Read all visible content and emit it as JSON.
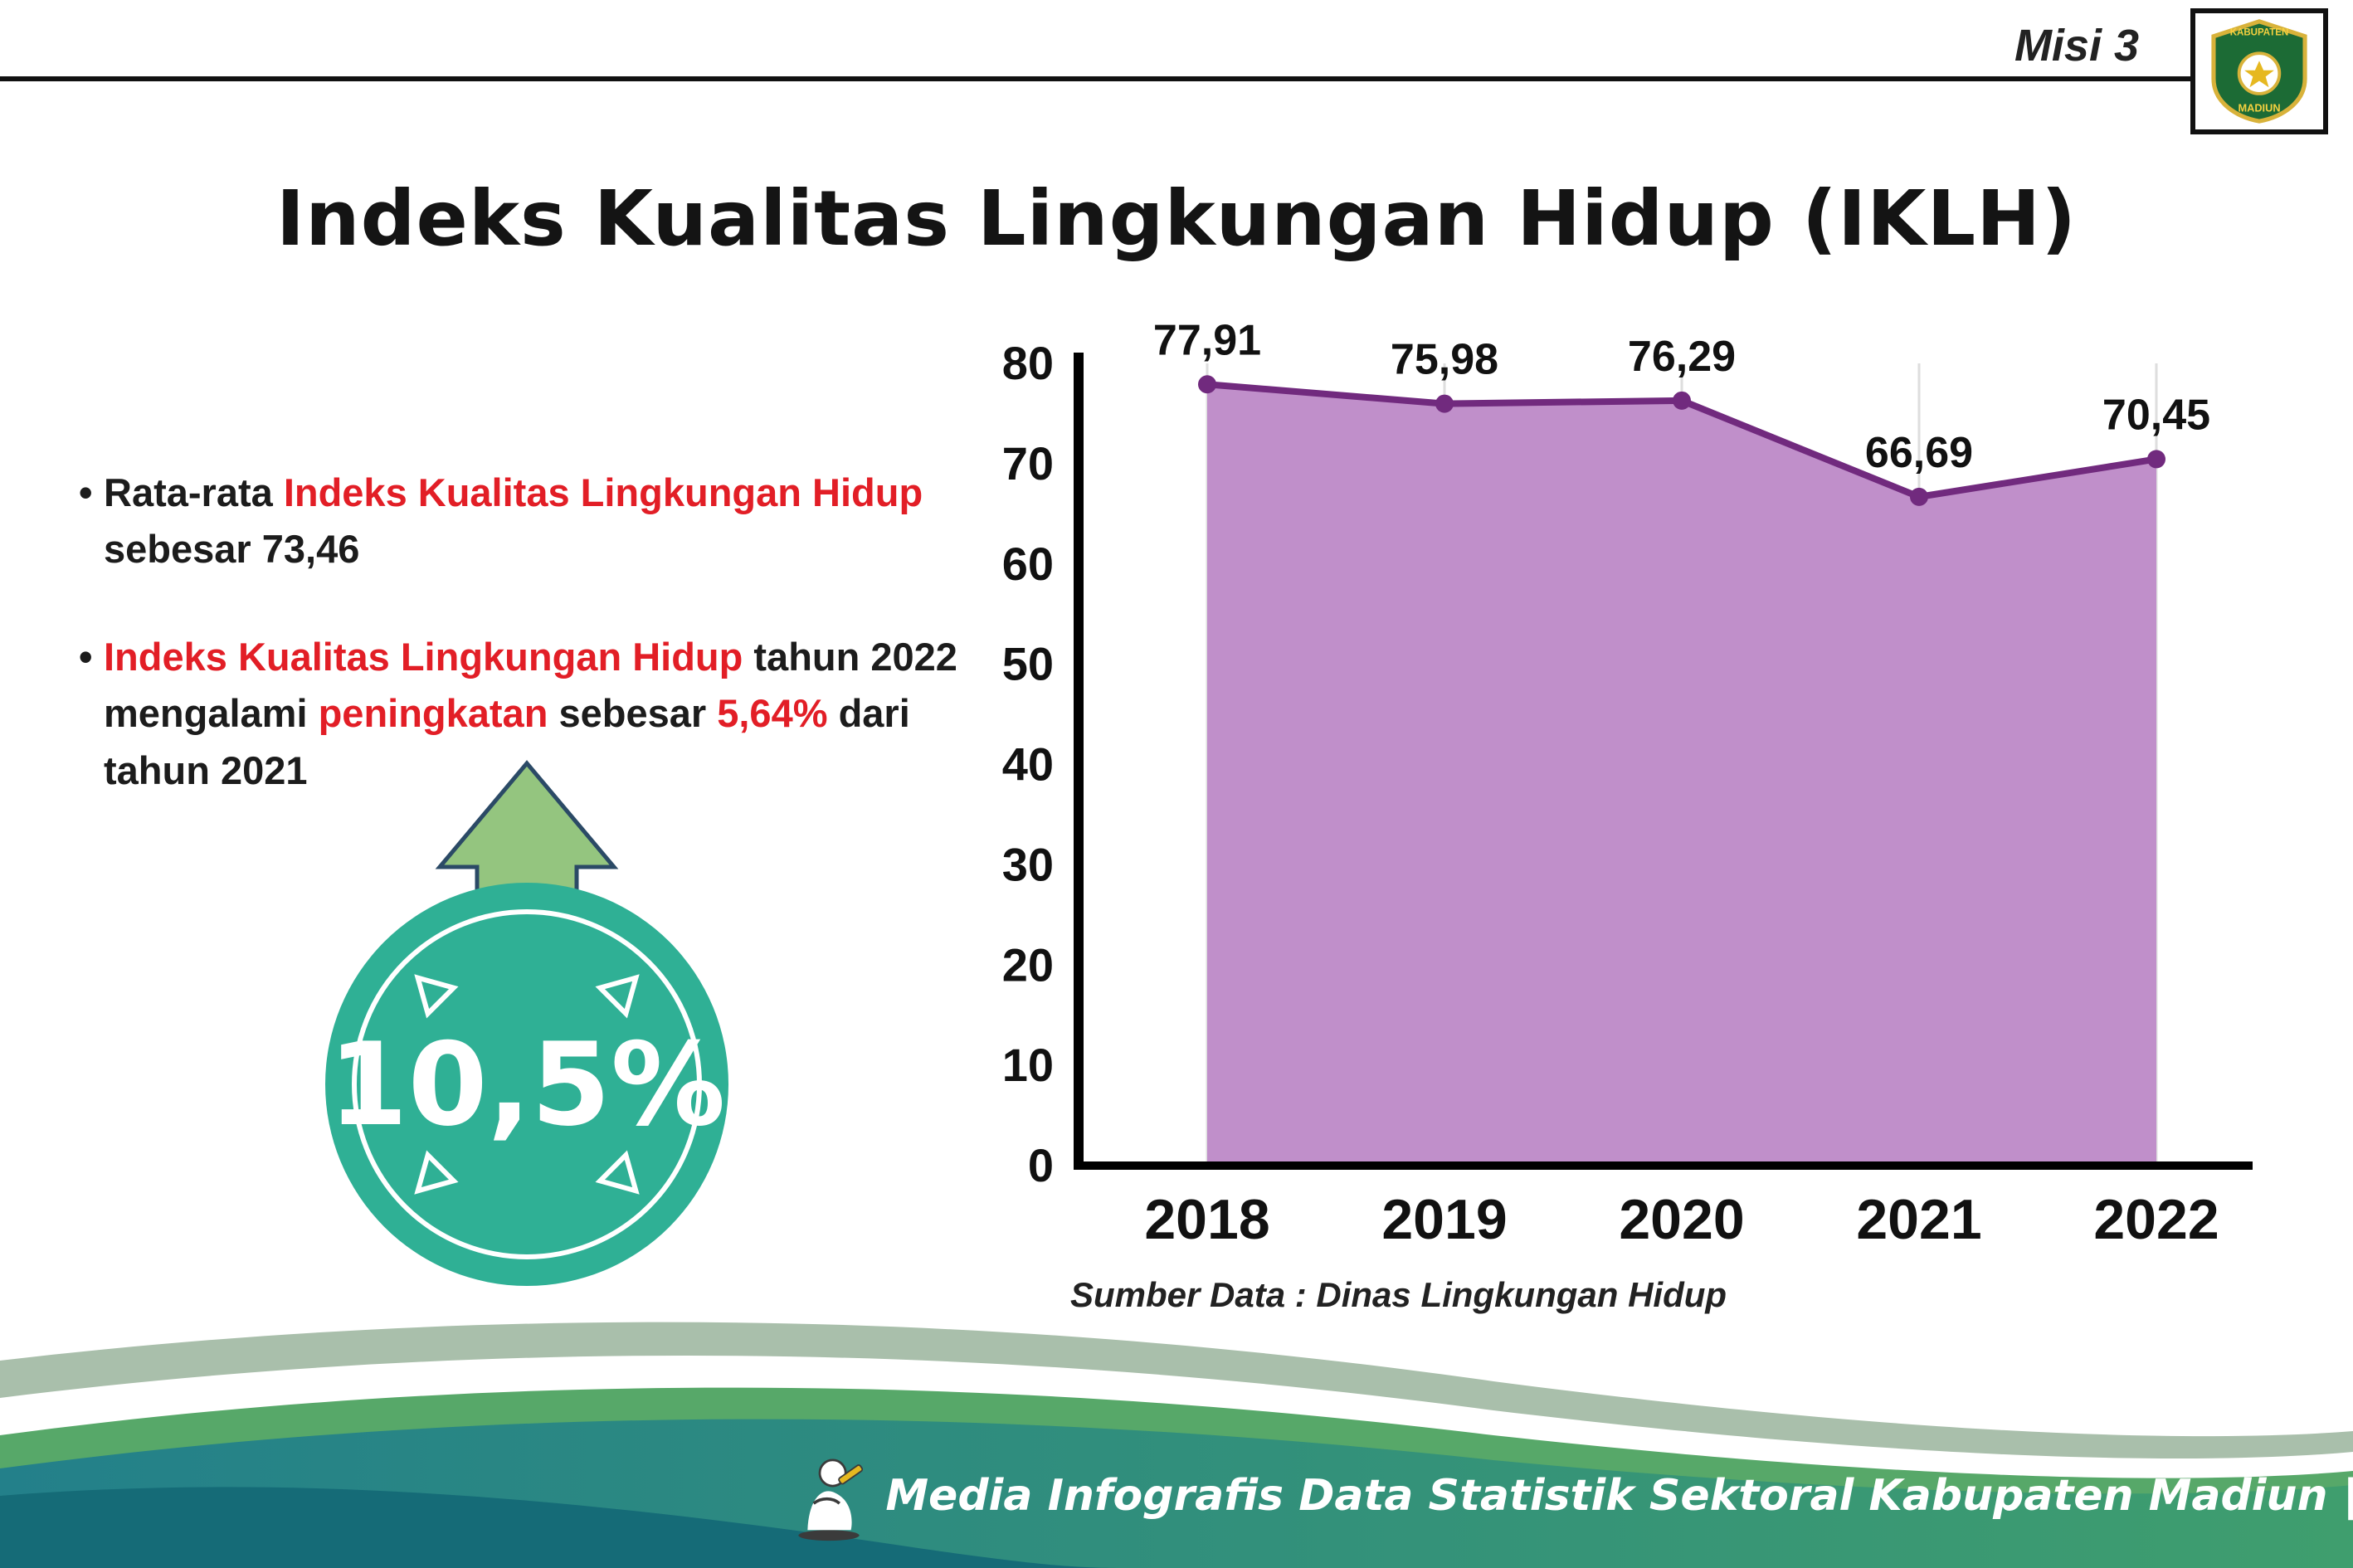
{
  "header": {
    "misi": "Misi 3",
    "title": "Indeks Kualitas Lingkungan Hidup (IKLH)",
    "logo": {
      "top_text": "KABUPATEN",
      "bottom_text": "MADIUN"
    }
  },
  "bullets": [
    {
      "parts": [
        {
          "text": "Rata-rata ",
          "color": "black"
        },
        {
          "text": "Indeks Kualitas Lingkungan Hidup",
          "color": "red"
        },
        {
          "text": " sebesar 73,46",
          "color": "black"
        }
      ]
    },
    {
      "parts": [
        {
          "text": "Indeks Kualitas Lingkungan Hidup",
          "color": "red"
        },
        {
          "text": " tahun 2022 mengalami ",
          "color": "black"
        },
        {
          "text": "peningkatan",
          "color": "red"
        },
        {
          "text": " sebesar ",
          "color": "black"
        },
        {
          "text": "5,64%",
          "color": "red"
        },
        {
          "text": " dari tahun 2021",
          "color": "black"
        }
      ]
    }
  ],
  "highlight": {
    "value": "10,5%"
  },
  "chart_data": {
    "type": "area",
    "title": "Indeks Kualitas Lingkungan Hidup (IKLH)",
    "categories": [
      "2018",
      "2019",
      "2020",
      "2021",
      "2022"
    ],
    "values": [
      77.91,
      75.98,
      76.29,
      66.69,
      70.45
    ],
    "value_labels": [
      "77,91",
      "75,98",
      "76,29",
      "66,69",
      "70,45"
    ],
    "ylim": [
      0,
      80
    ],
    "yticks": [
      0,
      10,
      20,
      30,
      40,
      50,
      60,
      70,
      80
    ],
    "grid": "vertical-light",
    "legend": "none",
    "line_color": "#712a7e",
    "fill_color": "#c08fca",
    "source": "Sumber Data : Dinas Lingkungan Hidup"
  },
  "footer": {
    "text": "Media Infografis Data Statistik Sektoral Kabupaten Madiun |"
  },
  "colors": {
    "red": "#e21e26",
    "purple_line": "#712a7e",
    "purple_fill": "#c08fca",
    "teal": "#2fb095",
    "arrow_green": "#94c57f",
    "wave_sage": "#a9bfab",
    "wave_green": "#57a869",
    "wave_teal": "#23808a",
    "wave_dark": "#156b77"
  }
}
